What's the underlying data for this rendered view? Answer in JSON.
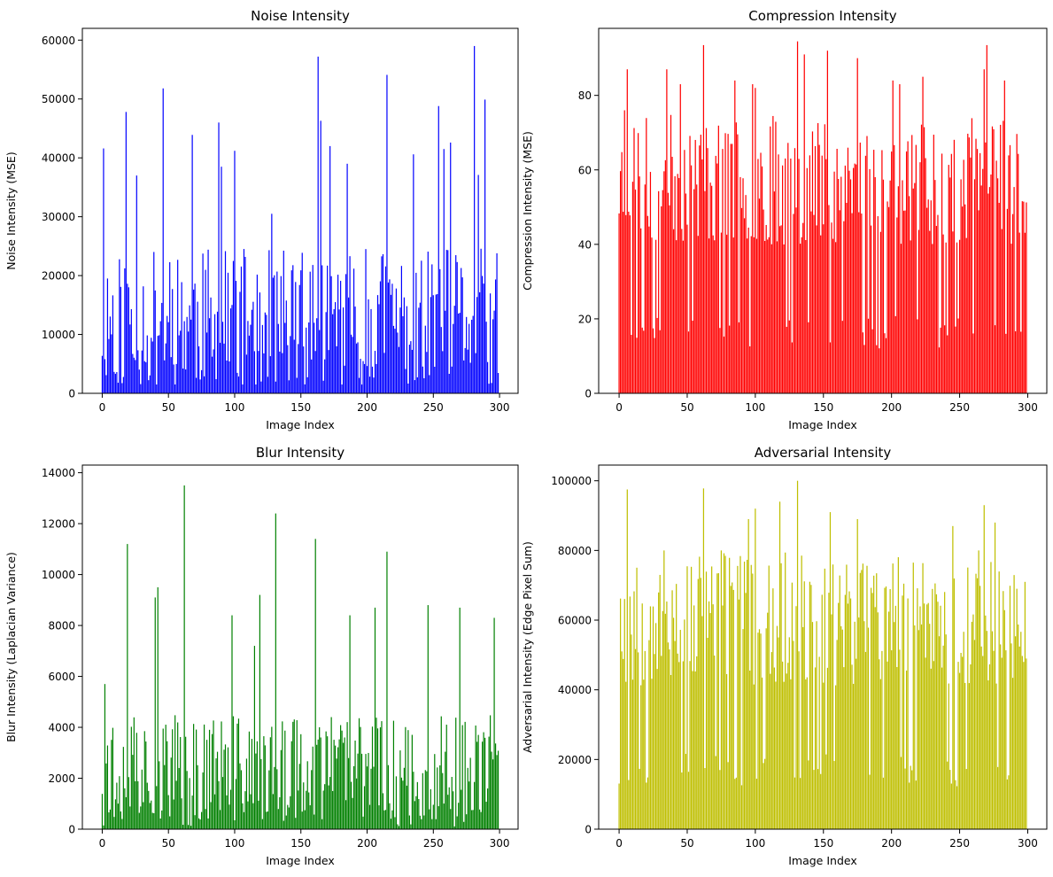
{
  "figure": {
    "background": "#ffffff"
  },
  "chart_data": [
    {
      "id": "noise",
      "type": "bar",
      "title": "Noise Intensity",
      "xlabel": "Image Index",
      "ylabel": "Noise Intensity (MSE)",
      "color": "#0000ff",
      "n": 300,
      "xlim": [
        -15,
        314
      ],
      "ylim": [
        0,
        62000
      ],
      "xticks": [
        0,
        50,
        100,
        150,
        200,
        250,
        300
      ],
      "yticks": [
        0,
        10000,
        20000,
        30000,
        40000,
        50000,
        60000
      ],
      "baseline": 9000,
      "spread": 15000,
      "floor": 1500,
      "ceiling": 59000,
      "seed": 11,
      "peaks": [
        [
          1,
          41600
        ],
        [
          18,
          47800
        ],
        [
          26,
          37000
        ],
        [
          46,
          51800
        ],
        [
          68,
          43900
        ],
        [
          88,
          46000
        ],
        [
          90,
          38500
        ],
        [
          100,
          41200
        ],
        [
          128,
          30500
        ],
        [
          163,
          57200
        ],
        [
          165,
          46300
        ],
        [
          172,
          42000
        ],
        [
          185,
          39000
        ],
        [
          215,
          54100
        ],
        [
          235,
          40600
        ],
        [
          254,
          48800
        ],
        [
          258,
          41500
        ],
        [
          263,
          42600
        ],
        [
          281,
          59000
        ],
        [
          284,
          37100
        ],
        [
          289,
          49900
        ]
      ]
    },
    {
      "id": "compression",
      "type": "bar",
      "title": "Compression Intensity",
      "xlabel": "Image Index",
      "ylabel": "Compression Intensity (MSE)",
      "color": "#ff0000",
      "n": 300,
      "xlim": [
        -15,
        314
      ],
      "ylim": [
        0,
        98
      ],
      "xticks": [
        0,
        50,
        100,
        150,
        200,
        250,
        300
      ],
      "yticks": [
        0,
        20,
        40,
        60,
        80
      ],
      "baseline": 52,
      "spread": 22,
      "floor": 12,
      "ceiling": 94.5,
      "seed": 23,
      "peaks": [
        [
          4,
          76
        ],
        [
          6,
          87
        ],
        [
          35,
          87
        ],
        [
          45,
          83
        ],
        [
          62,
          93.5
        ],
        [
          85,
          84
        ],
        [
          98,
          83
        ],
        [
          100,
          82
        ],
        [
          131,
          94.5
        ],
        [
          136,
          91
        ],
        [
          153,
          92
        ],
        [
          175,
          90
        ],
        [
          201,
          84
        ],
        [
          206,
          83
        ],
        [
          223,
          85
        ],
        [
          268,
          87
        ],
        [
          270,
          93.5
        ],
        [
          283,
          84
        ]
      ]
    },
    {
      "id": "blur",
      "type": "bar",
      "title": "Blur Intensity",
      "xlabel": "Image Index",
      "ylabel": "Blur Intensity (Laplacian Variance)",
      "color": "#008000",
      "n": 300,
      "xlim": [
        -15,
        314
      ],
      "ylim": [
        0,
        14300
      ],
      "xticks": [
        0,
        50,
        100,
        150,
        200,
        250,
        300
      ],
      "yticks": [
        0,
        2000,
        4000,
        6000,
        8000,
        10000,
        12000,
        14000
      ],
      "baseline": 1800,
      "spread": 2600,
      "floor": 100,
      "ceiling": 13500,
      "seed": 37,
      "peaks": [
        [
          2,
          5700
        ],
        [
          19,
          11200
        ],
        [
          40,
          9100
        ],
        [
          42,
          9500
        ],
        [
          62,
          13500
        ],
        [
          98,
          8400
        ],
        [
          115,
          7200
        ],
        [
          119,
          9200
        ],
        [
          131,
          12400
        ],
        [
          161,
          11400
        ],
        [
          187,
          8400
        ],
        [
          206,
          8700
        ],
        [
          215,
          10900
        ],
        [
          246,
          8800
        ],
        [
          270,
          8700
        ],
        [
          296,
          8300
        ]
      ]
    },
    {
      "id": "adversarial",
      "type": "bar",
      "title": "Adversarial Intensity",
      "xlabel": "Image Index",
      "ylabel": "Adversarial Intensity (Edge Pixel Sum)",
      "color": "#bfbf00",
      "n": 300,
      "xlim": [
        -15,
        314
      ],
      "ylim": [
        0,
        104500
      ],
      "xticks": [
        0,
        50,
        100,
        150,
        200,
        250,
        300
      ],
      "yticks": [
        0,
        20000,
        40000,
        60000,
        80000,
        100000
      ],
      "baseline": 55000,
      "spread": 25000,
      "floor": 12000,
      "ceiling": 100000,
      "seed": 53,
      "peaks": [
        [
          6,
          97500
        ],
        [
          62,
          97800
        ],
        [
          95,
          89000
        ],
        [
          100,
          92000
        ],
        [
          118,
          94000
        ],
        [
          131,
          100000
        ],
        [
          155,
          91000
        ],
        [
          175,
          89000
        ],
        [
          245,
          87000
        ],
        [
          268,
          93000
        ],
        [
          276,
          88000
        ]
      ]
    }
  ]
}
